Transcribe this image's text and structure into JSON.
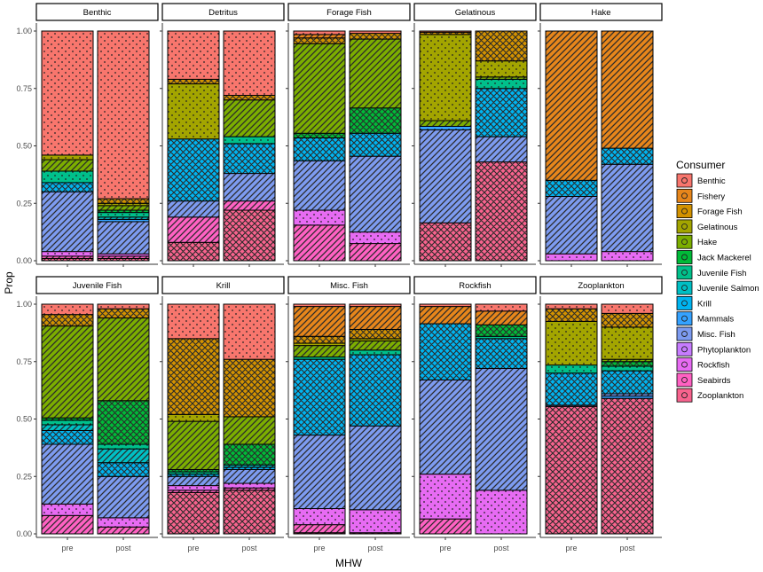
{
  "chart_data": {
    "type": "bar",
    "subtype": "stacked-proportion-facets",
    "xlabel": "MHW",
    "ylabel": "Prop",
    "ylim": [
      0,
      1
    ],
    "yticks": [
      "0.00",
      "0.25",
      "0.50",
      "0.75",
      "1.00"
    ],
    "categories": [
      "pre",
      "post"
    ],
    "legend_title": "Consumer",
    "legend_position": "right",
    "legend": [
      {
        "name": "Benthic",
        "color": "#F8766D",
        "pattern": "dots"
      },
      {
        "name": "Fishery",
        "color": "#E7861B",
        "pattern": "stripes"
      },
      {
        "name": "Forage Fish",
        "color": "#D39200",
        "pattern": "crosshatch"
      },
      {
        "name": "Gelatinous",
        "color": "#A3A500",
        "pattern": "dots"
      },
      {
        "name": "Hake",
        "color": "#7CAE00",
        "pattern": "stripes"
      },
      {
        "name": "Jack Mackerel",
        "color": "#00BA38",
        "pattern": "crosshatch"
      },
      {
        "name": "Juvenile Fish",
        "color": "#00C08B",
        "pattern": "dots"
      },
      {
        "name": "Juvenile Salmon",
        "color": "#00BFC4",
        "pattern": "stripes"
      },
      {
        "name": "Krill",
        "color": "#00B4F0",
        "pattern": "crosshatch"
      },
      {
        "name": "Mammals",
        "color": "#35A2FF",
        "pattern": "dots"
      },
      {
        "name": "Misc. Fish",
        "color": "#7D9BF0",
        "pattern": "stripes"
      },
      {
        "name": "Phytoplankton",
        "color": "#C77CFF",
        "pattern": "crosshatch"
      },
      {
        "name": "Rockfish",
        "color": "#E76BF3",
        "pattern": "dots"
      },
      {
        "name": "Seabirds",
        "color": "#FF61C3",
        "pattern": "stripes"
      },
      {
        "name": "Zooplankton",
        "color": "#F8638E",
        "pattern": "crosshatch"
      }
    ],
    "facets": [
      {
        "title": "Benthic",
        "pre": [
          [
            "Zooplankton",
            0.01
          ],
          [
            "Seabirds",
            0.01
          ],
          [
            "Rockfish",
            0.02
          ],
          [
            "Misc. Fish",
            0.26
          ],
          [
            "Krill",
            0.04
          ],
          [
            "Juvenile Fish",
            0.05
          ],
          [
            "Hake",
            0.05
          ],
          [
            "Gelatinous",
            0.02
          ],
          [
            "Benthic",
            0.54
          ]
        ],
        "post": [
          [
            "Zooplankton",
            0.01
          ],
          [
            "Seabirds",
            0.01
          ],
          [
            "Rockfish",
            0.01
          ],
          [
            "Misc. Fish",
            0.14
          ],
          [
            "Mammals",
            0.01
          ],
          [
            "Juvenile Salmon",
            0.01
          ],
          [
            "Juvenile Fish",
            0.02
          ],
          [
            "Jack Mackerel",
            0.01
          ],
          [
            "Hake",
            0.02
          ],
          [
            "Gelatinous",
            0.01
          ],
          [
            "Forage Fish",
            0.02
          ],
          [
            "Benthic",
            0.73
          ]
        ]
      },
      {
        "title": "Detritus",
        "pre": [
          [
            "Zooplankton",
            0.08
          ],
          [
            "Seabirds",
            0.11
          ],
          [
            "Misc. Fish",
            0.07
          ],
          [
            "Krill",
            0.27
          ],
          [
            "Gelatinous",
            0.24
          ],
          [
            "Forage Fish",
            0.02
          ],
          [
            "Benthic",
            0.21
          ]
        ],
        "post": [
          [
            "Zooplankton",
            0.22
          ],
          [
            "Seabirds",
            0.04
          ],
          [
            "Misc. Fish",
            0.12
          ],
          [
            "Krill",
            0.13
          ],
          [
            "Juvenile Fish",
            0.03
          ],
          [
            "Hake",
            0.16
          ],
          [
            "Forage Fish",
            0.02
          ],
          [
            "Benthic",
            0.28
          ]
        ]
      },
      {
        "title": "Forage Fish",
        "pre": [
          [
            "Seabirds",
            0.155
          ],
          [
            "Rockfish",
            0.065
          ],
          [
            "Misc. Fish",
            0.215
          ],
          [
            "Krill",
            0.1
          ],
          [
            "Jack Mackerel",
            0.02
          ],
          [
            "Hake",
            0.39
          ],
          [
            "Forage Fish",
            0.025
          ],
          [
            "Fishery",
            0.015
          ],
          [
            "Benthic",
            0.015
          ]
        ],
        "post": [
          [
            "Seabirds",
            0.075
          ],
          [
            "Rockfish",
            0.05
          ],
          [
            "Misc. Fish",
            0.33
          ],
          [
            "Krill",
            0.1
          ],
          [
            "Jack Mackerel",
            0.11
          ],
          [
            "Hake",
            0.3
          ],
          [
            "Forage Fish",
            0.025
          ],
          [
            "Benthic",
            0.01
          ]
        ]
      },
      {
        "title": "Gelatinous",
        "pre": [
          [
            "Zooplankton",
            0.165
          ],
          [
            "Misc. Fish",
            0.405
          ],
          [
            "Mammals",
            0.015
          ],
          [
            "Hake",
            0.025
          ],
          [
            "Gelatinous",
            0.375
          ],
          [
            "Forage Fish",
            0.01
          ],
          [
            "Benthic",
            0.005
          ]
        ],
        "post": [
          [
            "Zooplankton",
            0.43
          ],
          [
            "Misc. Fish",
            0.11
          ],
          [
            "Krill",
            0.21
          ],
          [
            "Juvenile Fish",
            0.04
          ],
          [
            "Hake",
            0.01
          ],
          [
            "Gelatinous",
            0.07
          ],
          [
            "Forage Fish",
            0.13
          ]
        ]
      },
      {
        "title": "Hake",
        "pre": [
          [
            "Rockfish",
            0.03
          ],
          [
            "Misc. Fish",
            0.25
          ],
          [
            "Krill",
            0.07
          ],
          [
            "Fishery",
            0.65
          ]
        ],
        "post": [
          [
            "Rockfish",
            0.04
          ],
          [
            "Misc. Fish",
            0.38
          ],
          [
            "Krill",
            0.07
          ],
          [
            "Fishery",
            0.51
          ]
        ]
      },
      {
        "title": "Juvenile Fish",
        "pre": [
          [
            "Seabirds",
            0.08
          ],
          [
            "Rockfish",
            0.05
          ],
          [
            "Misc. Fish",
            0.26
          ],
          [
            "Krill",
            0.06
          ],
          [
            "Juvenile Salmon",
            0.025
          ],
          [
            "Juvenile Fish",
            0.02
          ],
          [
            "Jack Mackerel",
            0.01
          ],
          [
            "Hake",
            0.4
          ],
          [
            "Forage Fish",
            0.05
          ],
          [
            "Benthic",
            0.045
          ]
        ],
        "post": [
          [
            "Seabirds",
            0.03
          ],
          [
            "Rockfish",
            0.04
          ],
          [
            "Misc. Fish",
            0.18
          ],
          [
            "Krill",
            0.06
          ],
          [
            "Juvenile Salmon",
            0.06
          ],
          [
            "Juvenile Fish",
            0.02
          ],
          [
            "Jack Mackerel",
            0.19
          ],
          [
            "Hake",
            0.36
          ],
          [
            "Forage Fish",
            0.04
          ],
          [
            "Benthic",
            0.02
          ]
        ]
      },
      {
        "title": "Krill",
        "pre": [
          [
            "Zooplankton",
            0.18
          ],
          [
            "Seabirds",
            0.01
          ],
          [
            "Rockfish",
            0.02
          ],
          [
            "Misc. Fish",
            0.04
          ],
          [
            "Krill",
            0.01
          ],
          [
            "Juvenile Fish",
            0.01
          ],
          [
            "Jack Mackerel",
            0.01
          ],
          [
            "Hake",
            0.21
          ],
          [
            "Gelatinous",
            0.03
          ],
          [
            "Forage Fish",
            0.33
          ],
          [
            "Benthic",
            0.15
          ]
        ],
        "post": [
          [
            "Zooplankton",
            0.19
          ],
          [
            "Seabirds",
            0.01
          ],
          [
            "Rockfish",
            0.02
          ],
          [
            "Misc. Fish",
            0.06
          ],
          [
            "Krill",
            0.01
          ],
          [
            "Juvenile Salmon",
            0.01
          ],
          [
            "Jack Mackerel",
            0.09
          ],
          [
            "Hake",
            0.12
          ],
          [
            "Forage Fish",
            0.25
          ],
          [
            "Benthic",
            0.24
          ]
        ]
      },
      {
        "title": "Misc. Fish",
        "pre": [
          [
            "Zooplankton",
            0.005
          ],
          [
            "Seabirds",
            0.035
          ],
          [
            "Rockfish",
            0.07
          ],
          [
            "Misc. Fish",
            0.32
          ],
          [
            "Krill",
            0.33
          ],
          [
            "Juvenile Fish",
            0.01
          ],
          [
            "Hake",
            0.05
          ],
          [
            "Gelatinous",
            0.01
          ],
          [
            "Forage Fish",
            0.03
          ],
          [
            "Fishery",
            0.13
          ],
          [
            "Benthic",
            0.01
          ]
        ],
        "post": [
          [
            "Zooplankton",
            0.005
          ],
          [
            "Rockfish",
            0.1
          ],
          [
            "Misc. Fish",
            0.365
          ],
          [
            "Krill",
            0.31
          ],
          [
            "Juvenile Fish",
            0.02
          ],
          [
            "Hake",
            0.04
          ],
          [
            "Gelatinous",
            0.01
          ],
          [
            "Forage Fish",
            0.04
          ],
          [
            "Fishery",
            0.1
          ],
          [
            "Benthic",
            0.01
          ]
        ]
      },
      {
        "title": "Rockfish",
        "pre": [
          [
            "Seabirds",
            0.065
          ],
          [
            "Rockfish",
            0.195
          ],
          [
            "Misc. Fish",
            0.41
          ],
          [
            "Krill",
            0.245
          ],
          [
            "Fishery",
            0.075
          ],
          [
            "Benthic",
            0.01
          ]
        ],
        "post": [
          [
            "Rockfish",
            0.19
          ],
          [
            "Misc. Fish",
            0.53
          ],
          [
            "Krill",
            0.13
          ],
          [
            "Juvenile Fish",
            0.01
          ],
          [
            "Jack Mackerel",
            0.05
          ],
          [
            "Fishery",
            0.06
          ],
          [
            "Benthic",
            0.03
          ]
        ]
      },
      {
        "title": "Zooplankton",
        "pre": [
          [
            "Zooplankton",
            0.555
          ],
          [
            "Misc. Fish",
            0.005
          ],
          [
            "Krill",
            0.14
          ],
          [
            "Juvenile Fish",
            0.035
          ],
          [
            "Gelatinous",
            0.19
          ],
          [
            "Forage Fish",
            0.055
          ],
          [
            "Benthic",
            0.02
          ]
        ],
        "post": [
          [
            "Zooplankton",
            0.59
          ],
          [
            "Mammals",
            0.01
          ],
          [
            "Misc. Fish",
            0.01
          ],
          [
            "Krill",
            0.1
          ],
          [
            "Juvenile Fish",
            0.02
          ],
          [
            "Jack Mackerel",
            0.02
          ],
          [
            "Hake",
            0.01
          ],
          [
            "Gelatinous",
            0.14
          ],
          [
            "Forage Fish",
            0.06
          ],
          [
            "Benthic",
            0.04
          ]
        ]
      }
    ]
  }
}
